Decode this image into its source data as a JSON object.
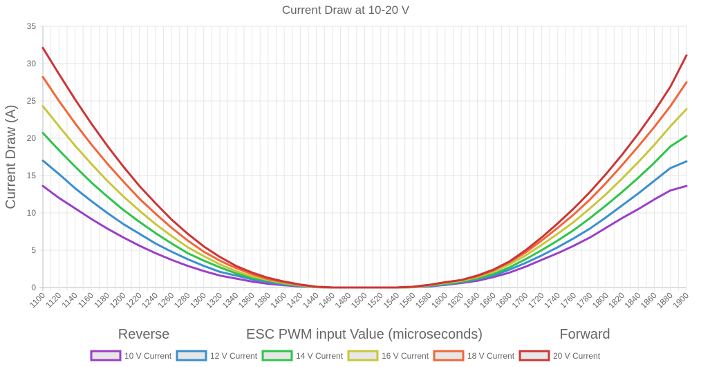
{
  "chart_data": {
    "type": "line",
    "title": "Current Draw at 10-20 V",
    "ylabel": "Current Draw (A)",
    "xlabel": "ESC PWM input Value (microseconds)",
    "annotations": {
      "left": "Reverse",
      "right": "Forward"
    },
    "xlim": [
      1100,
      1900
    ],
    "ylim": [
      0,
      35
    ],
    "y_ticks": [
      0,
      5,
      10,
      15,
      20,
      25,
      30,
      35
    ],
    "x_tick_labels": [
      "1100",
      "1120",
      "1140",
      "1160",
      "1180",
      "1200",
      "1220",
      "1240",
      "1260",
      "1280",
      "1300",
      "1320",
      "1340",
      "1360",
      "1380",
      "1400",
      "1420",
      "1440",
      "1460",
      "1480",
      "1500",
      "1520",
      "1540",
      "1560",
      "1580",
      "1600",
      "1620",
      "1640",
      "1660",
      "1680",
      "1700",
      "1720",
      "1740",
      "1760",
      "1780",
      "1800",
      "1820",
      "1840",
      "1860",
      "1880",
      "1900"
    ],
    "grid": true,
    "legend_position": "bottom",
    "x": [
      1100,
      1120,
      1140,
      1160,
      1180,
      1200,
      1220,
      1240,
      1260,
      1280,
      1300,
      1320,
      1340,
      1360,
      1380,
      1400,
      1420,
      1440,
      1460,
      1480,
      1500,
      1520,
      1540,
      1560,
      1580,
      1600,
      1620,
      1640,
      1660,
      1680,
      1700,
      1720,
      1740,
      1760,
      1780,
      1800,
      1820,
      1840,
      1860,
      1880,
      1900
    ],
    "series": [
      {
        "name": "10 V Current",
        "color": "#9b3fc9",
        "values": [
          13.6,
          12.0,
          10.6,
          9.2,
          7.9,
          6.7,
          5.6,
          4.6,
          3.7,
          2.9,
          2.2,
          1.6,
          1.2,
          0.8,
          0.5,
          0.3,
          0.15,
          0.05,
          0,
          0,
          0,
          0,
          0,
          0.05,
          0.15,
          0.35,
          0.6,
          0.9,
          1.4,
          2.0,
          2.8,
          3.7,
          4.6,
          5.6,
          6.7,
          8.0,
          9.3,
          10.5,
          11.8,
          13.0,
          13.6
        ]
      },
      {
        "name": "12 V Current",
        "color": "#3a8fcf",
        "values": [
          17.0,
          15.2,
          13.3,
          11.6,
          10.0,
          8.5,
          7.2,
          5.9,
          4.8,
          3.8,
          2.9,
          2.1,
          1.6,
          1.1,
          0.7,
          0.4,
          0.2,
          0.05,
          0,
          0,
          0,
          0,
          0,
          0.05,
          0.2,
          0.4,
          0.7,
          1.1,
          1.6,
          2.4,
          3.3,
          4.3,
          5.4,
          6.6,
          7.9,
          9.4,
          11.0,
          12.6,
          14.3,
          16.0,
          16.9
        ]
      },
      {
        "name": "14 V Current",
        "color": "#2fc44a",
        "values": [
          20.7,
          18.4,
          16.2,
          14.1,
          12.2,
          10.4,
          8.8,
          7.3,
          5.9,
          4.6,
          3.6,
          2.7,
          1.9,
          1.3,
          0.9,
          0.5,
          0.25,
          0.05,
          0,
          0,
          0,
          0,
          0,
          0.05,
          0.25,
          0.5,
          0.8,
          1.2,
          1.8,
          2.7,
          3.8,
          5.0,
          6.3,
          7.7,
          9.3,
          11.0,
          12.8,
          14.7,
          16.7,
          18.9,
          20.3
        ]
      },
      {
        "name": "16 V Current",
        "color": "#c9c63c",
        "values": [
          24.3,
          21.6,
          19.0,
          16.6,
          14.3,
          12.2,
          10.3,
          8.5,
          6.9,
          5.4,
          4.2,
          3.1,
          2.2,
          1.5,
          1.0,
          0.6,
          0.3,
          0.05,
          0,
          0,
          0,
          0,
          0,
          0.05,
          0.3,
          0.6,
          0.9,
          1.4,
          2.1,
          3.1,
          4.3,
          5.7,
          7.2,
          8.8,
          10.6,
          12.5,
          14.6,
          16.8,
          19.1,
          21.6,
          23.9
        ]
      },
      {
        "name": "18 V Current",
        "color": "#f2673a",
        "values": [
          28.2,
          25.0,
          22.0,
          19.2,
          16.6,
          14.2,
          11.9,
          9.9,
          8.0,
          6.3,
          4.8,
          3.6,
          2.6,
          1.8,
          1.1,
          0.7,
          0.35,
          0.1,
          0,
          0,
          0,
          0,
          0,
          0.1,
          0.35,
          0.7,
          1.0,
          1.5,
          2.3,
          3.4,
          4.7,
          6.3,
          8.0,
          9.8,
          11.8,
          14.0,
          16.4,
          18.9,
          21.5,
          24.3,
          27.5
        ]
      },
      {
        "name": "20 V Current",
        "color": "#cc3535",
        "values": [
          32.1,
          28.6,
          25.2,
          22.0,
          19.0,
          16.2,
          13.6,
          11.3,
          9.1,
          7.2,
          5.5,
          4.1,
          2.9,
          2.0,
          1.3,
          0.8,
          0.4,
          0.1,
          0,
          0,
          0,
          0,
          0,
          0.1,
          0.35,
          0.7,
          1.0,
          1.6,
          2.4,
          3.5,
          5.0,
          6.7,
          8.6,
          10.6,
          12.8,
          15.2,
          17.8,
          20.6,
          23.6,
          26.9,
          31.1
        ]
      }
    ]
  }
}
